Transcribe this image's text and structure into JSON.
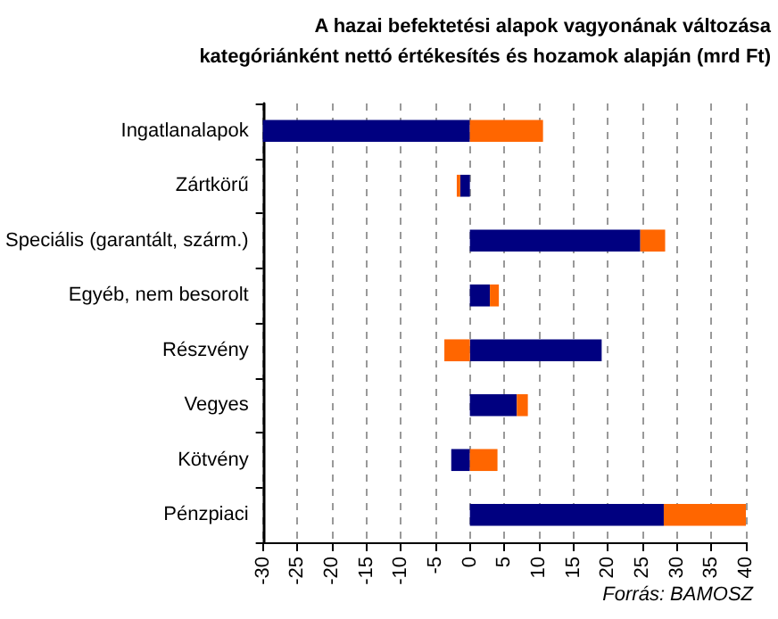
{
  "chart_data": {
    "type": "bar",
    "orientation": "horizontal",
    "stacked": true,
    "title": "A hazai befektetési alapok vagyonának változása",
    "subtitle": "kategóriánként nettó értékesítés és hozamok alapján (mrd Ft)",
    "categories": [
      "Ingatlanalapok",
      "Zártkörű",
      "Speciális (garantált, szárm.)",
      "Egyéb, nem besorolt",
      "Részvény",
      "Vegyes",
      "Kötvény",
      "Pénzpiaci"
    ],
    "series": [
      {
        "color": "#000080",
        "values": [
          -30,
          -1.4,
          24.7,
          2.9,
          19.1,
          6.8,
          -2.7,
          28.1
        ]
      },
      {
        "color": "#ff6600",
        "values": [
          10.6,
          -0.5,
          3.6,
          1.3,
          -3.7,
          1.6,
          4.0,
          12.1
        ]
      }
    ],
    "xlim": [
      -30,
      40
    ],
    "xticks": [
      -30,
      -25,
      -20,
      -15,
      -10,
      -5,
      0,
      5,
      10,
      15,
      20,
      25,
      30,
      35,
      40
    ],
    "grid": "x",
    "legend": false,
    "annotations": [
      "Forrás: BAMOSZ"
    ]
  }
}
